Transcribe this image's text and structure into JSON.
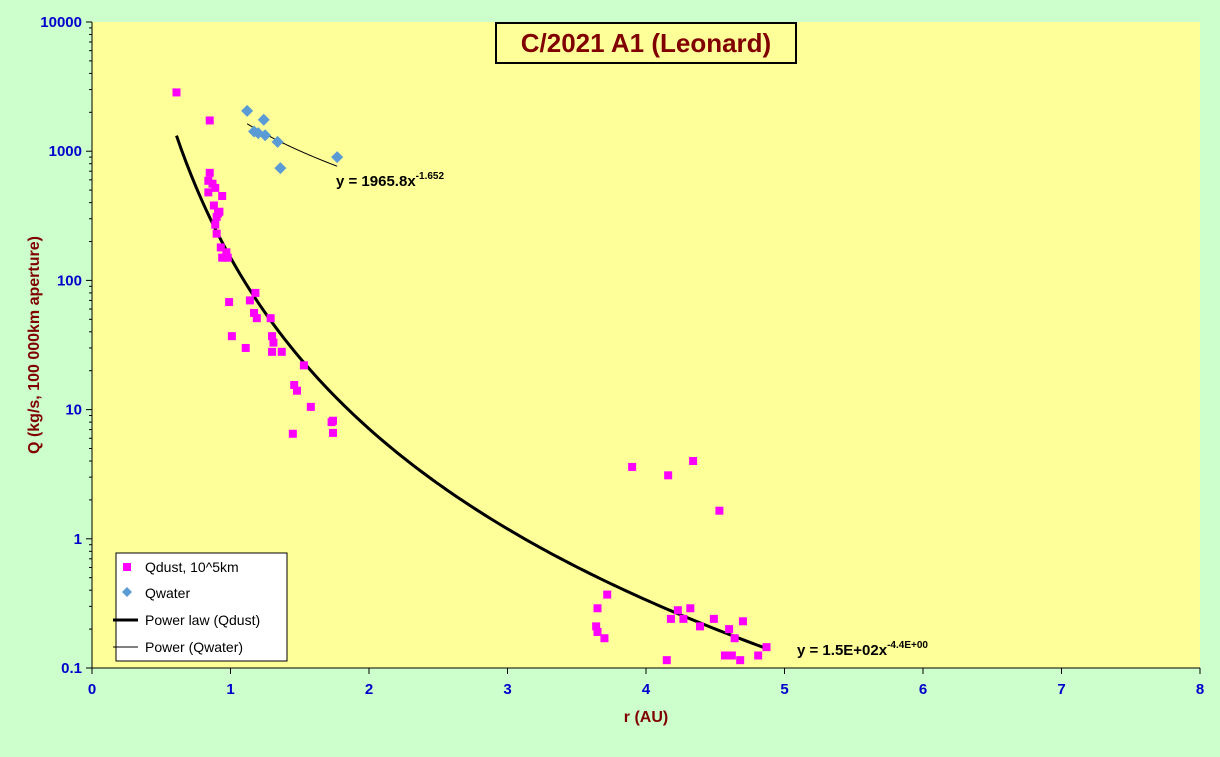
{
  "chart_data": {
    "type": "scatter",
    "title": "C/2021 A1 (Leonard)",
    "xlabel": "r (AU)",
    "ylabel": "Q (kg/s, 100 000km aperture)",
    "x_ticks": [
      "0",
      "1",
      "2",
      "3",
      "4",
      "5",
      "6",
      "7",
      "8"
    ],
    "y_ticks": [
      "0.1",
      "1",
      "10",
      "100",
      "1000",
      "10000"
    ],
    "xlim": [
      0,
      8
    ],
    "ylim": [
      0.1,
      10000
    ],
    "y_scale": "log",
    "grid": false,
    "legend_position": "bottom-left",
    "colors": {
      "plot_background": "#ffff99",
      "page_background": "#ccffcc",
      "axis_text": "#0000cc",
      "axis_title": "#800000",
      "title_text": "#800000",
      "qdust": "#ff00ff",
      "qwater": "#5b9bd5",
      "fit": "#000000"
    },
    "series": [
      {
        "name": "Qdust, 10^5km",
        "marker": "square",
        "points": [
          [
            0.61,
            2850
          ],
          [
            0.85,
            1730
          ],
          [
            0.85,
            680
          ],
          [
            0.84,
            590
          ],
          [
            0.84,
            480
          ],
          [
            0.87,
            560
          ],
          [
            0.88,
            380
          ],
          [
            0.89,
            520
          ],
          [
            0.89,
            270
          ],
          [
            0.9,
            230
          ],
          [
            0.9,
            310
          ],
          [
            0.91,
            330
          ],
          [
            0.92,
            340
          ],
          [
            0.93,
            180
          ],
          [
            0.94,
            450
          ],
          [
            0.94,
            150
          ],
          [
            0.96,
            150
          ],
          [
            0.97,
            165
          ],
          [
            0.98,
            150
          ],
          [
            0.99,
            68
          ],
          [
            1.01,
            37
          ],
          [
            1.11,
            30
          ],
          [
            1.14,
            70
          ],
          [
            1.17,
            56
          ],
          [
            1.18,
            80
          ],
          [
            1.19,
            51
          ],
          [
            1.29,
            51
          ],
          [
            1.3,
            28
          ],
          [
            1.3,
            37
          ],
          [
            1.31,
            33
          ],
          [
            1.37,
            28
          ],
          [
            1.45,
            6.5
          ],
          [
            1.46,
            15.5
          ],
          [
            1.48,
            14
          ],
          [
            1.53,
            22
          ],
          [
            1.58,
            10.5
          ],
          [
            1.73,
            8
          ],
          [
            1.74,
            8.2
          ],
          [
            1.74,
            6.6
          ],
          [
            3.64,
            0.21
          ],
          [
            3.65,
            0.19
          ],
          [
            3.65,
            0.29
          ],
          [
            3.7,
            0.17
          ],
          [
            3.72,
            0.37
          ],
          [
            3.9,
            3.6
          ],
          [
            4.15,
            0.115
          ],
          [
            4.16,
            3.1
          ],
          [
            4.18,
            0.24
          ],
          [
            4.23,
            0.28
          ],
          [
            4.27,
            0.24
          ],
          [
            4.32,
            0.29
          ],
          [
            4.34,
            4.0
          ],
          [
            4.39,
            0.21
          ],
          [
            4.49,
            0.24
          ],
          [
            4.53,
            1.65
          ],
          [
            4.57,
            0.125
          ],
          [
            4.6,
            0.2
          ],
          [
            4.62,
            0.125
          ],
          [
            4.64,
            0.17
          ],
          [
            4.68,
            0.115
          ],
          [
            4.7,
            0.23
          ],
          [
            4.81,
            0.125
          ],
          [
            4.87,
            0.145
          ]
        ]
      },
      {
        "name": "Qwater",
        "marker": "diamond",
        "points": [
          [
            1.12,
            2050
          ],
          [
            1.17,
            1420
          ],
          [
            1.2,
            1380
          ],
          [
            1.24,
            1750
          ],
          [
            1.25,
            1330
          ],
          [
            1.34,
            1180
          ],
          [
            1.36,
            740
          ],
          [
            1.77,
            900
          ]
        ]
      },
      {
        "name": "Power law (Qdust)",
        "type": "fit",
        "coefficient": 150,
        "exponent": -4.4,
        "x_range": [
          0.61,
          4.87
        ]
      },
      {
        "name": "Power (Qwater)",
        "type": "fit",
        "coefficient": 1965.8,
        "exponent": -1.652,
        "x_range": [
          1.12,
          1.77
        ]
      }
    ],
    "annotations": [
      {
        "base": "y = 1965.8x",
        "sup": "-1.652",
        "series": "Power (Qwater)"
      },
      {
        "base": "y = 1.5E+02x",
        "sup": "-4.4E+00",
        "series": "Power law (Qdust)"
      }
    ]
  }
}
